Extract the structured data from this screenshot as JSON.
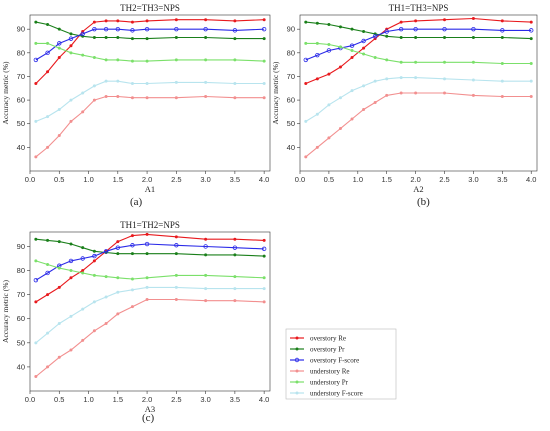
{
  "chart_data": [
    {
      "type": "line",
      "title": "TH2=TH3=NPS",
      "xlabel": "A1",
      "ylabel": "Accuracy metric (%)",
      "caption": "(a)",
      "xlim": [
        0,
        4.1
      ],
      "ylim": [
        30,
        96
      ],
      "xticks": [
        0.0,
        0.5,
        1.0,
        1.5,
        2.0,
        2.5,
        3.0,
        3.5,
        4.0
      ],
      "yticks": [
        40,
        50,
        60,
        70,
        80,
        90
      ],
      "x": [
        0.1,
        0.3,
        0.5,
        0.7,
        0.9,
        1.1,
        1.3,
        1.5,
        1.75,
        2.0,
        2.5,
        3.0,
        3.5,
        4.0
      ],
      "series": [
        {
          "name": "overstory Re",
          "color": "#e8191d",
          "marker": "dot",
          "values": [
            67,
            72,
            78,
            83,
            89,
            93,
            93.5,
            93.5,
            93,
            93.5,
            94,
            94,
            93.5,
            94
          ]
        },
        {
          "name": "overstory Pr",
          "color": "#1a7f1a",
          "marker": "dot",
          "values": [
            93,
            92,
            90,
            88,
            87,
            86.5,
            86.5,
            86.5,
            86,
            86,
            86.5,
            86.5,
            86,
            86
          ]
        },
        {
          "name": "overstory F-score",
          "color": "#2a2ae8",
          "marker": "circle",
          "values": [
            77,
            80,
            84,
            86,
            88,
            90,
            90,
            90,
            89.5,
            90,
            90,
            90,
            89.5,
            90
          ]
        },
        {
          "name": "understory Re",
          "color": "#f28f8f",
          "marker": "dot",
          "values": [
            36,
            40,
            45,
            51,
            55,
            60,
            61.5,
            61.5,
            61,
            61,
            61,
            61.5,
            61,
            61
          ]
        },
        {
          "name": "understory Pr",
          "color": "#7be06a",
          "marker": "dot",
          "values": [
            84,
            84,
            82,
            80,
            79,
            78,
            77,
            77,
            76.5,
            76.5,
            77,
            77,
            77,
            76.5
          ]
        },
        {
          "name": "understory F-score",
          "color": "#b8e4ee",
          "marker": "dot",
          "values": [
            51,
            53,
            56,
            60,
            63,
            66,
            68,
            68,
            67,
            67,
            67.5,
            67.5,
            67,
            67
          ]
        }
      ]
    },
    {
      "type": "line",
      "title": "TH1=TH3=NPS",
      "xlabel": "A2",
      "ylabel": "Accuracy metric (%)",
      "caption": "(b)",
      "xlim": [
        0,
        4.1
      ],
      "ylim": [
        30,
        96
      ],
      "xticks": [
        0.0,
        0.5,
        1.0,
        1.5,
        2.0,
        2.5,
        3.0,
        3.5,
        4.0
      ],
      "yticks": [
        40,
        50,
        60,
        70,
        80,
        90
      ],
      "x": [
        0.1,
        0.3,
        0.5,
        0.7,
        0.9,
        1.1,
        1.3,
        1.5,
        1.75,
        2.0,
        2.5,
        3.0,
        3.5,
        4.0
      ],
      "series": [
        {
          "name": "overstory Re",
          "color": "#e8191d",
          "marker": "dot",
          "values": [
            67,
            69,
            71,
            74,
            78,
            82,
            86,
            90,
            93,
            93.5,
            94,
            94.5,
            93.5,
            93
          ]
        },
        {
          "name": "overstory Pr",
          "color": "#1a7f1a",
          "marker": "dot",
          "values": [
            93,
            92.5,
            92,
            91,
            90,
            89,
            88,
            87,
            86.5,
            86.5,
            86.5,
            86.5,
            86.5,
            86
          ]
        },
        {
          "name": "overstory F-score",
          "color": "#2a2ae8",
          "marker": "circle",
          "values": [
            77,
            79,
            81,
            82,
            83,
            85,
            87,
            89,
            90,
            90,
            90,
            90,
            89.5,
            89.5
          ]
        },
        {
          "name": "understory Re",
          "color": "#f28f8f",
          "marker": "dot",
          "values": [
            36,
            40,
            44,
            48,
            52,
            56,
            59,
            62,
            63,
            63,
            63,
            62,
            61.5,
            61.5
          ]
        },
        {
          "name": "understory Pr",
          "color": "#7be06a",
          "marker": "dot",
          "values": [
            84,
            84,
            83.5,
            82.5,
            81,
            79.5,
            78,
            77,
            76,
            76,
            76,
            76,
            75.5,
            75.5
          ]
        },
        {
          "name": "understory F-score",
          "color": "#b8e4ee",
          "marker": "dot",
          "values": [
            51,
            54,
            58,
            61,
            64,
            66,
            68,
            69,
            69.5,
            69.5,
            69,
            68.5,
            68,
            68
          ]
        }
      ]
    },
    {
      "type": "line",
      "title": "TH1=TH2=NPS",
      "xlabel": "A3",
      "ylabel": "Accuracy metric (%)",
      "caption": "(c)",
      "xlim": [
        0,
        4.1
      ],
      "ylim": [
        30,
        96
      ],
      "xticks": [
        0.0,
        0.5,
        1.0,
        1.5,
        2.0,
        2.5,
        3.0,
        3.5,
        4.0
      ],
      "yticks": [
        40,
        50,
        60,
        70,
        80,
        90
      ],
      "x": [
        0.1,
        0.3,
        0.5,
        0.7,
        0.9,
        1.1,
        1.3,
        1.5,
        1.75,
        2.0,
        2.5,
        3.0,
        3.5,
        4.0
      ],
      "series": [
        {
          "name": "overstory Re",
          "color": "#e8191d",
          "marker": "dot",
          "values": [
            67,
            70,
            73,
            77,
            80,
            84,
            88,
            92,
            94.5,
            95,
            94,
            93,
            93,
            92.5
          ]
        },
        {
          "name": "overstory Pr",
          "color": "#1a7f1a",
          "marker": "dot",
          "values": [
            93,
            92.5,
            92,
            91,
            89.5,
            88,
            87.5,
            87,
            87,
            87,
            87,
            86.5,
            86.5,
            86
          ]
        },
        {
          "name": "overstory F-score",
          "color": "#2a2ae8",
          "marker": "circle",
          "values": [
            76,
            79,
            82,
            84,
            85,
            86,
            88,
            89.5,
            90.5,
            91,
            90.5,
            90,
            89.5,
            89
          ]
        },
        {
          "name": "understory Re",
          "color": "#f28f8f",
          "marker": "dot",
          "values": [
            36,
            40,
            44,
            47,
            51,
            55,
            58,
            62,
            65,
            68,
            68,
            67.5,
            67.5,
            67
          ]
        },
        {
          "name": "understory Pr",
          "color": "#7be06a",
          "marker": "dot",
          "values": [
            84,
            82.5,
            81,
            80,
            79,
            78,
            77.5,
            77,
            76.5,
            77,
            78,
            78,
            77.5,
            77
          ]
        },
        {
          "name": "understory F-score",
          "color": "#b8e4ee",
          "marker": "dot",
          "values": [
            50,
            54,
            58,
            61,
            64,
            67,
            69,
            71,
            72,
            73,
            73,
            72.5,
            72.5,
            72.5
          ]
        }
      ]
    }
  ],
  "legend": {
    "placement": "right-of-panel-c",
    "entries": [
      "overstory Re",
      "overstory Pr",
      "overstory F-score",
      "understory Re",
      "understory Pr",
      "understory F-score"
    ]
  }
}
